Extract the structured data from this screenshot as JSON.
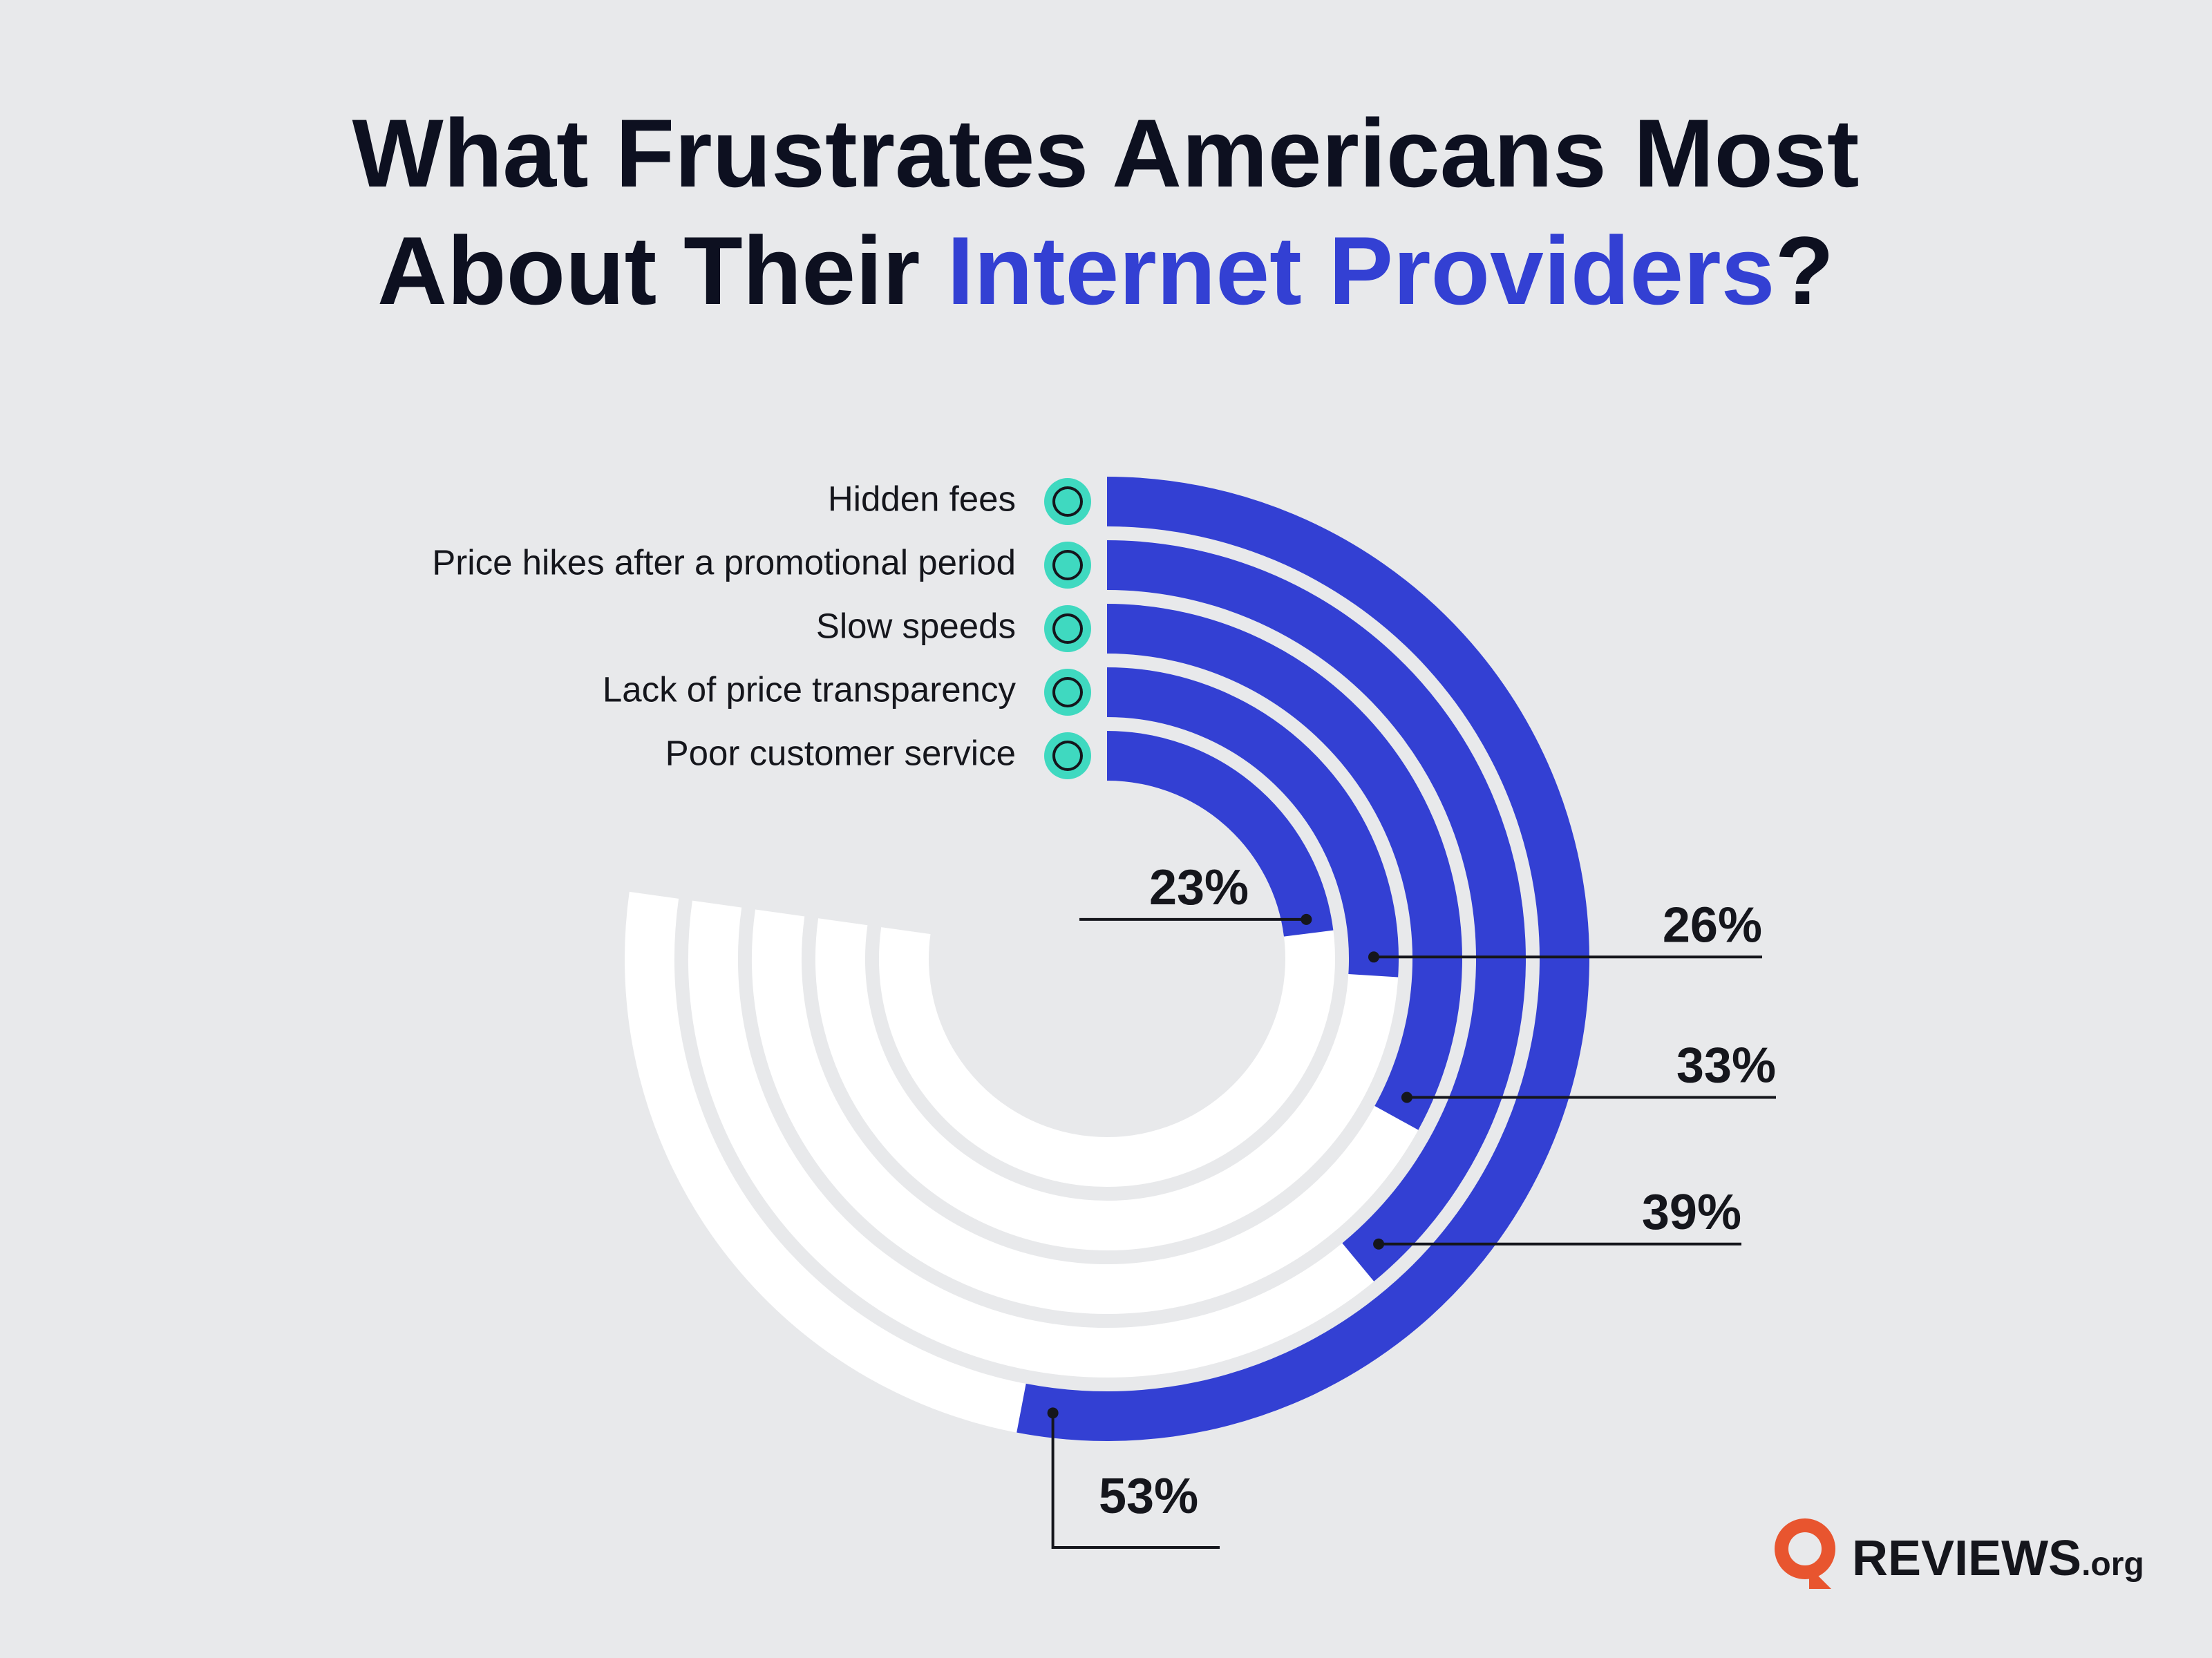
{
  "chart_data": {
    "type": "radial-bar",
    "title": {
      "line1": "What Frustrates Americans Most",
      "line2": "About Their ",
      "highlight": "Internet Providers",
      "end": "?"
    },
    "categories": [
      "Hidden fees",
      "Price hikes after a promotional period",
      "Slow speeds",
      "Lack of price transparency",
      "Poor customer service"
    ],
    "values": [
      53,
      39,
      33,
      26,
      23
    ],
    "value_labels": [
      "53%",
      "39%",
      "33%",
      "26%",
      "23%"
    ],
    "color": "#3340d3",
    "max": 100
  },
  "logo": {
    "name": "REVIEWS",
    "suffix": ".org"
  }
}
